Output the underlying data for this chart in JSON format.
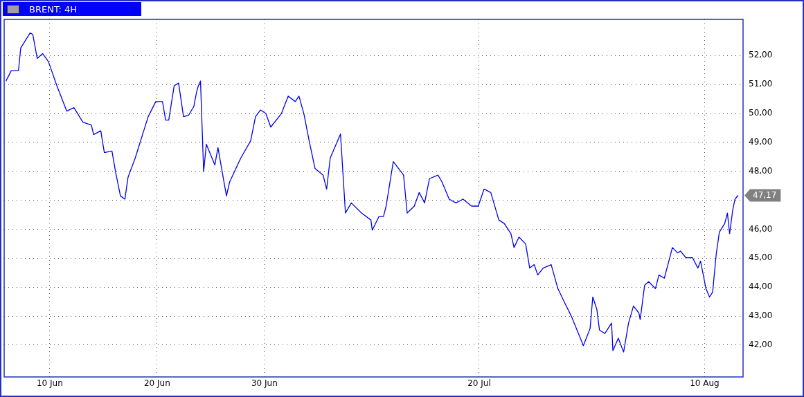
{
  "chart_data": {
    "type": "line",
    "title": "BRENT: 4H",
    "x": [
      "--06-05T22:00",
      "--06-06T10:00",
      "--06-07T02:00",
      "--06-07T07:00",
      "--06-08T04:00",
      "--06-08T10:00",
      "--06-08T20:00",
      "--06-09T08:00",
      "--06-09T21:00",
      "--06-10T16:00",
      "--06-11T14:00",
      "--06-12T06:00",
      "--06-13T02:00",
      "--06-13T21:00",
      "--06-14T02:00",
      "--06-14T18:00",
      "--06-15T02:00",
      "--06-15T19:00",
      "--06-16T03:00",
      "--06-16T14:00",
      "--06-17T00:00",
      "--06-17T07:00",
      "--06-17T23:00",
      "--06-19T04:00",
      "--06-19T21:00",
      "--06-20T12:00",
      "--06-20T19:00",
      "--06-21T02:00",
      "--06-21T14:00",
      "--06-22T00:00",
      "--06-22T11:00",
      "--06-22T22:00",
      "--06-23T10:00",
      "--06-23T16:00",
      "--06-23T20:00",
      "--06-24T01:00",
      "--06-24T08:00",
      "--06-24T14:00",
      "--06-25T09:00",
      "--06-25T16:00",
      "--06-26T11:00",
      "--06-26T18:00",
      "--06-27T19:00",
      "--06-28T17:00",
      "--06-29T04:00",
      "--06-29T15:00",
      "--06-30T03:00",
      "--06-30T14:00",
      "--07-01T14:00",
      "--07-02T05:00",
      "--07-02T21:00",
      "--07-03T05:00",
      "--07-03T16:00",
      "--07-04T04:00",
      "--07-04T17:00",
      "--07-05T11:00",
      "--07-05T19:00",
      "--07-06T03:00",
      "--07-07T02:00",
      "--07-07T13:00",
      "--07-08T02:00",
      "--07-09T01:00",
      "--07-09T22:00",
      "--07-10T01:00",
      "--07-10T16:00",
      "--07-11T02:00",
      "--07-11T08:00",
      "--07-12T00:00",
      "--07-12T23:00",
      "--07-13T07:00",
      "--07-13T23:00",
      "--07-14T10:00",
      "--07-14T22:00",
      "--07-15T09:00",
      "--07-16T04:00",
      "--07-16T13:00",
      "--07-17T05:00",
      "--07-17T20:00",
      "--07-18T12:00",
      "--07-19T07:00",
      "--07-19T22:00",
      "--07-20T11:00",
      "--07-21T02:00",
      "--07-21T20:00",
      "--07-22T08:00",
      "--07-22T23:00",
      "--07-23T06:00",
      "--07-23T17:00",
      "--07-24T08:00",
      "--07-24T17:00",
      "--07-25T03:00",
      "--07-25T11:00",
      "--07-25T23:00",
      "--07-26T17:00",
      "--07-27T08:00",
      "--07-27T23:00",
      "--07-28T14:00",
      "--07-29T17:00",
      "--07-30T08:00",
      "--07-30T14:00",
      "--07-30T23:00",
      "--07-31T05:00",
      "--07-31T17:00",
      "--08-01T08:00",
      "--08-01T11:00",
      "--08-01T23:00",
      "--08-02T11:00",
      "--08-02T22:00",
      "--08-03T09:00",
      "--08-03T21:00",
      "--08-04T00:00",
      "--08-04T10:00",
      "--08-04T19:00",
      "--08-05T10:00",
      "--08-05T18:00",
      "--08-06T06:00",
      "--08-07T00:00",
      "--08-07T12:00",
      "--08-07T18:00",
      "--08-08T06:00",
      "--08-08T21:00",
      "--08-09T09:00",
      "--08-09T15:00",
      "--08-10T03:00",
      "--08-10T11:00",
      "--08-10T18:00",
      "--08-11T02:00",
      "--08-11T09:00",
      "--08-11T21:00",
      "--08-12T03:00",
      "--08-12T08:00",
      "--08-12T15:00",
      "--08-12T20:00",
      "--08-13T03:00"
    ],
    "series": [
      {
        "color": "#0000ee",
        "values": [
          51.12,
          51.48,
          51.48,
          52.26,
          52.78,
          52.73,
          51.9,
          52.07,
          51.79,
          50.95,
          50.08,
          50.2,
          49.7,
          49.6,
          49.27,
          49.4,
          48.65,
          48.7,
          47.99,
          47.15,
          47.04,
          47.8,
          48.46,
          49.89,
          50.41,
          50.41,
          49.77,
          49.77,
          50.95,
          51.05,
          49.89,
          49.93,
          50.24,
          50.72,
          50.95,
          51.12,
          47.99,
          48.94,
          48.22,
          48.82,
          47.15,
          47.63,
          48.46,
          49.05,
          49.89,
          50.12,
          50.0,
          49.53,
          50.0,
          50.6,
          50.41,
          50.6,
          50.0,
          49.05,
          48.1,
          47.87,
          47.39,
          48.46,
          49.29,
          46.56,
          46.91,
          46.56,
          46.32,
          45.97,
          46.44,
          46.44,
          46.8,
          48.34,
          47.87,
          46.56,
          46.8,
          47.27,
          46.91,
          47.75,
          47.87,
          47.63,
          47.04,
          46.91,
          47.04,
          46.8,
          46.8,
          47.39,
          47.27,
          46.32,
          46.2,
          45.85,
          45.37,
          45.73,
          45.49,
          44.66,
          44.78,
          44.42,
          44.66,
          44.78,
          43.95,
          43.47,
          43.0,
          41.98,
          42.57,
          43.66,
          43.24,
          42.52,
          42.4,
          42.76,
          41.81,
          42.24,
          41.76,
          42.76,
          43.35,
          43.11,
          42.88,
          44.07,
          44.19,
          43.95,
          44.42,
          44.31,
          45.37,
          45.18,
          45.25,
          45.02,
          45.02,
          44.66,
          44.9,
          43.95,
          43.66,
          43.83,
          45.14,
          45.9,
          46.2,
          46.56,
          45.85,
          46.68,
          47.04,
          47.17
        ]
      }
    ],
    "annotations": [
      "47,17"
    ],
    "xlim": [
      "--06-05T18:00",
      "--08-13T14:00"
    ],
    "xticks": [
      {
        "value": "--06-10",
        "label": "10 Jun"
      },
      {
        "value": "--06-20",
        "label": "20 Jun"
      },
      {
        "value": "--06-30",
        "label": "30 Jun"
      },
      {
        "value": "--07-20",
        "label": "20 Jul"
      },
      {
        "value": "--08-10",
        "label": "10 Aug"
      }
    ],
    "ylim": [
      40.9,
      53.25
    ],
    "yticks": [
      {
        "value": 42,
        "label": "42,00"
      },
      {
        "value": 43,
        "label": "43,00"
      },
      {
        "value": 44,
        "label": "44,00"
      },
      {
        "value": 45,
        "label": "45,00"
      },
      {
        "value": 46,
        "label": "46,00"
      },
      {
        "value": 47,
        "label": null
      },
      {
        "value": 48,
        "label": "48,00"
      },
      {
        "value": 49,
        "label": "49,00"
      },
      {
        "value": 50,
        "label": "50,00"
      },
      {
        "value": 51,
        "label": "51,00"
      },
      {
        "value": 52,
        "label": "52,00"
      }
    ],
    "grid": true,
    "legend": false,
    "marker": "none",
    "line_style": "solid"
  }
}
